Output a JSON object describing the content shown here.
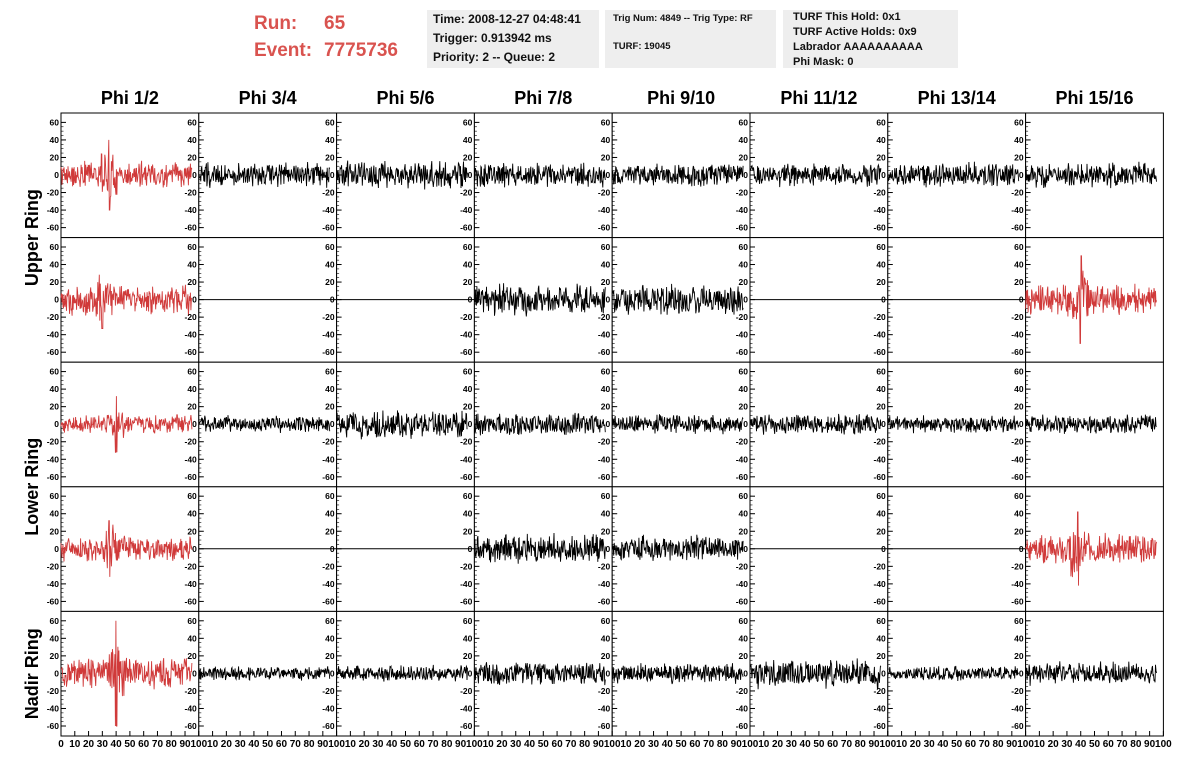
{
  "run_info": {
    "run_label": "Run:",
    "run_value": "65",
    "event_label": "Event:",
    "event_value": "7775736",
    "color": "#d9534f"
  },
  "time_box": {
    "time": "Time: 2008-12-27 04:48:41",
    "trigger": "Trigger: 0.913942 ms",
    "priority": "Priority: 2 -- Queue: 2"
  },
  "trig_box": {
    "trig_line": "Trig Num: 4849 -- Trig Type: RF",
    "turf_line": "TURF: 19045"
  },
  "turf_box": {
    "this_hold": "TURF This Hold: 0x1",
    "active_holds": "TURF Active Holds: 0x9",
    "labrador": "Labrador AAAAAAAAAA",
    "phi_mask": "Phi Mask: 0"
  },
  "column_headers": [
    "Phi 1/2",
    "Phi 3/4",
    "Phi 5/6",
    "Phi 7/8",
    "Phi 9/10",
    "Phi 11/12",
    "Phi 13/14",
    "Phi 15/16"
  ],
  "row_headers": [
    "Upper Ring",
    "Lower Ring",
    "Nadir Ring"
  ],
  "chart_data": {
    "type": "line",
    "rows": 5,
    "cols": 8,
    "xlim": [
      0,
      100
    ],
    "ylim": [
      -65,
      65
    ],
    "y_ticks": [
      -60,
      -40,
      -20,
      0,
      20,
      40,
      60
    ],
    "y_tick_labels": [
      "-60",
      "-40",
      "-20",
      "0",
      "20",
      "40",
      "60"
    ],
    "x_ticks": [
      0,
      10,
      20,
      30,
      40,
      50,
      60,
      70,
      80,
      90,
      100
    ],
    "x_tick_labels": [
      "0",
      "10",
      "20",
      "30",
      "40",
      "50",
      "60",
      "70",
      "80",
      "90",
      "100"
    ],
    "colors": {
      "triggered": "#d03a3a",
      "normal": "#000000"
    },
    "panels": [
      {
        "row": 0,
        "col": 0,
        "color": "triggered",
        "amp": 13,
        "spike": [
          35,
          40
        ],
        "flat": false
      },
      {
        "row": 0,
        "col": 1,
        "color": "normal",
        "amp": 12,
        "flat": false
      },
      {
        "row": 0,
        "col": 2,
        "color": "normal",
        "amp": 13,
        "flat": false
      },
      {
        "row": 0,
        "col": 3,
        "color": "normal",
        "amp": 12,
        "flat": false
      },
      {
        "row": 0,
        "col": 4,
        "color": "normal",
        "amp": 11,
        "flat": false
      },
      {
        "row": 0,
        "col": 5,
        "color": "normal",
        "amp": 11,
        "flat": false
      },
      {
        "row": 0,
        "col": 6,
        "color": "normal",
        "amp": 12,
        "flat": false
      },
      {
        "row": 0,
        "col": 7,
        "color": "normal",
        "amp": 12,
        "flat": false
      },
      {
        "row": 1,
        "col": 0,
        "color": "triggered",
        "amp": 15,
        "spike": [
          30,
          33
        ],
        "flat": false
      },
      {
        "row": 1,
        "col": 1,
        "color": "normal",
        "amp": 0,
        "flat": true
      },
      {
        "row": 1,
        "col": 2,
        "color": "normal",
        "amp": 0,
        "flat": true
      },
      {
        "row": 1,
        "col": 3,
        "color": "normal",
        "amp": 15,
        "flat": false
      },
      {
        "row": 1,
        "col": 4,
        "color": "normal",
        "amp": 15,
        "flat": false
      },
      {
        "row": 1,
        "col": 5,
        "color": "normal",
        "amp": 0,
        "flat": true
      },
      {
        "row": 1,
        "col": 6,
        "color": "normal",
        "amp": 0,
        "flat": true
      },
      {
        "row": 1,
        "col": 7,
        "color": "triggered",
        "amp": 15,
        "spike": [
          40,
          50
        ],
        "flat": false
      },
      {
        "row": 2,
        "col": 0,
        "color": "triggered",
        "amp": 9,
        "spike": [
          40,
          32
        ],
        "flat": false
      },
      {
        "row": 2,
        "col": 1,
        "color": "normal",
        "amp": 8,
        "flat": false
      },
      {
        "row": 2,
        "col": 2,
        "color": "normal",
        "amp": 14,
        "flat": false
      },
      {
        "row": 2,
        "col": 3,
        "color": "normal",
        "amp": 11,
        "flat": false
      },
      {
        "row": 2,
        "col": 4,
        "color": "normal",
        "amp": 9,
        "flat": false
      },
      {
        "row": 2,
        "col": 5,
        "color": "normal",
        "amp": 10,
        "flat": false
      },
      {
        "row": 2,
        "col": 6,
        "color": "normal",
        "amp": 8,
        "flat": false
      },
      {
        "row": 2,
        "col": 7,
        "color": "normal",
        "amp": 10,
        "flat": false
      },
      {
        "row": 3,
        "col": 0,
        "color": "triggered",
        "amp": 12,
        "spike": [
          35,
          32
        ],
        "flat": false
      },
      {
        "row": 3,
        "col": 1,
        "color": "normal",
        "amp": 0,
        "flat": true
      },
      {
        "row": 3,
        "col": 2,
        "color": "normal",
        "amp": 0,
        "flat": true
      },
      {
        "row": 3,
        "col": 3,
        "color": "normal",
        "amp": 14,
        "flat": false
      },
      {
        "row": 3,
        "col": 4,
        "color": "normal",
        "amp": 13,
        "flat": false
      },
      {
        "row": 3,
        "col": 5,
        "color": "normal",
        "amp": 0,
        "flat": true
      },
      {
        "row": 3,
        "col": 6,
        "color": "normal",
        "amp": 0,
        "flat": true
      },
      {
        "row": 3,
        "col": 7,
        "color": "triggered",
        "amp": 15,
        "spike": [
          38,
          42
        ],
        "flat": false
      },
      {
        "row": 4,
        "col": 0,
        "color": "triggered",
        "amp": 15,
        "spike": [
          40,
          60
        ],
        "flat": false
      },
      {
        "row": 4,
        "col": 1,
        "color": "normal",
        "amp": 7,
        "flat": false
      },
      {
        "row": 4,
        "col": 2,
        "color": "normal",
        "amp": 8,
        "flat": false
      },
      {
        "row": 4,
        "col": 3,
        "color": "normal",
        "amp": 11,
        "flat": false
      },
      {
        "row": 4,
        "col": 4,
        "color": "normal",
        "amp": 10,
        "flat": false
      },
      {
        "row": 4,
        "col": 5,
        "color": "normal",
        "amp": 14,
        "flat": false
      },
      {
        "row": 4,
        "col": 6,
        "color": "normal",
        "amp": 7,
        "flat": false
      },
      {
        "row": 4,
        "col": 7,
        "color": "normal",
        "amp": 11,
        "flat": false
      }
    ]
  }
}
